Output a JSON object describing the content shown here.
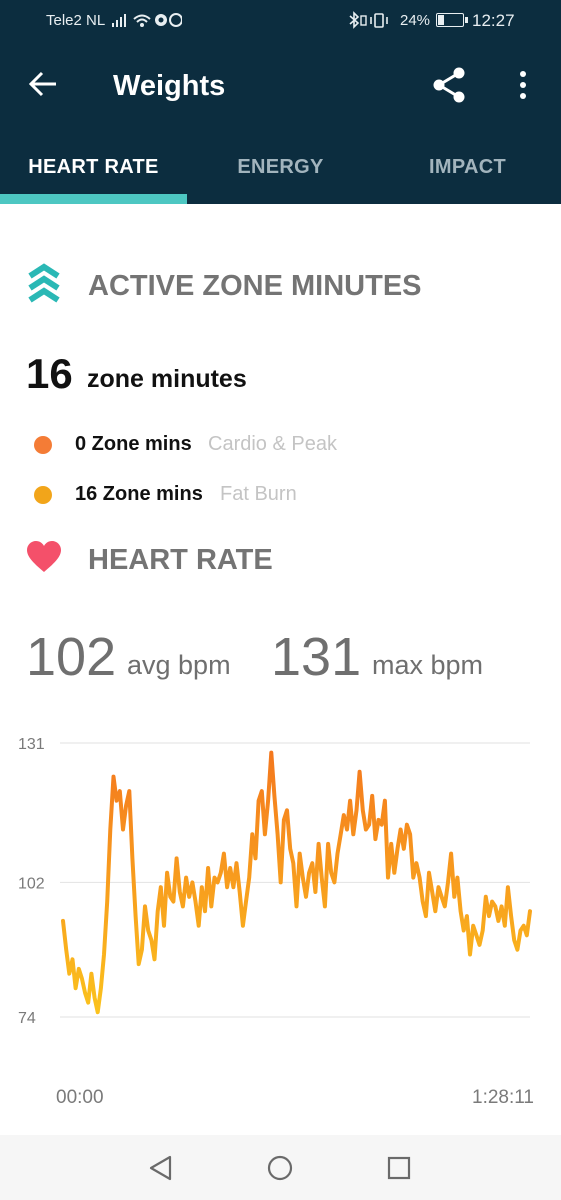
{
  "status_bar": {
    "carrier": "Tele2 NL",
    "signal_icons": "signal-wifi-whatsapp",
    "battery": "24%",
    "time": "12:27"
  },
  "app_bar": {
    "title": "Weights",
    "back_icon": "arrow-left-icon",
    "share_icon": "share-icon",
    "more_icon": "more-vert-icon"
  },
  "tabs": [
    {
      "label": "HEART RATE",
      "active": true
    },
    {
      "label": "ENERGY",
      "active": false
    },
    {
      "label": "IMPACT",
      "active": false
    }
  ],
  "active_zone": {
    "heading": "ACTIVE ZONE MINUTES",
    "total": "16",
    "total_unit": "zone minutes",
    "zones": [
      {
        "value": "0 Zone mins",
        "name": "Cardio & Peak",
        "color": "#f47c36"
      },
      {
        "value": "16 Zone mins",
        "name": "Fat Burn",
        "color": "#f2a51a"
      }
    ]
  },
  "heart_rate": {
    "heading": "HEART RATE",
    "avg": "102",
    "avg_unit": "avg bpm",
    "max": "131",
    "max_unit": "max bpm"
  },
  "colors": {
    "header_bg": "#0c2d3f",
    "tab_indicator": "#4dc7c2",
    "azm_icon": "#2ab8b5",
    "heart_icon": "#f4506a",
    "line_top": "#f4781e",
    "line_bottom": "#fbc21d"
  },
  "chart_data": {
    "type": "line",
    "title": "",
    "xlabel": "",
    "ylabel": "",
    "ylim": [
      74,
      131
    ],
    "y_ticks": [
      "131",
      "102",
      "74"
    ],
    "x_labels": [
      "00:00",
      "1:28:11"
    ],
    "x_unit": "minutes",
    "series": [
      {
        "values": [
          94,
          88,
          83,
          86,
          80,
          84,
          82,
          79,
          77,
          83,
          78,
          75,
          80,
          87,
          98,
          113,
          124,
          119,
          121,
          113,
          118,
          121,
          107,
          95,
          85,
          88,
          97,
          92,
          90,
          86,
          96,
          101,
          93,
          104,
          99,
          98,
          107,
          100,
          97,
          103,
          99,
          102,
          98,
          93,
          101,
          96,
          105,
          97,
          103,
          102,
          104,
          108,
          101,
          105,
          101,
          106,
          100,
          93,
          98,
          103,
          112,
          107,
          119,
          121,
          112,
          119,
          129,
          120,
          112,
          102,
          115,
          117,
          109,
          106,
          97,
          108,
          103,
          99,
          104,
          106,
          100,
          110,
          103,
          97,
          110,
          104,
          102,
          108,
          112,
          116,
          113,
          119,
          112,
          117,
          125,
          117,
          113,
          114,
          120,
          111,
          115,
          114,
          119,
          103,
          110,
          104,
          109,
          113,
          109,
          114,
          112,
          103,
          106,
          103,
          98,
          95,
          104,
          100,
          96,
          101,
          99,
          97,
          102,
          108,
          99,
          103,
          96,
          92,
          95,
          87,
          93,
          91,
          89,
          92,
          99,
          95,
          98,
          97,
          94,
          97,
          93,
          101,
          95,
          90,
          88,
          92,
          93,
          91,
          96
        ]
      }
    ]
  },
  "nav_bar": {
    "back_icon": "nav-back-icon",
    "home_icon": "nav-home-icon",
    "recents_icon": "nav-recents-icon"
  }
}
